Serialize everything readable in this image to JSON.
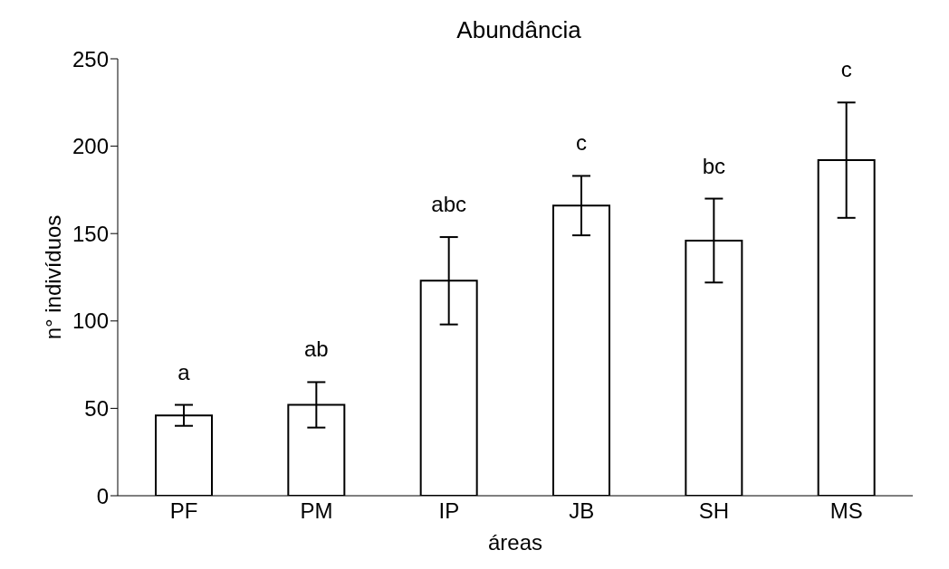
{
  "chart_data": {
    "type": "bar",
    "title": "Abundância",
    "xlabel": "áreas",
    "ylabel": "n° indivíduos",
    "categories": [
      "PF",
      "PM",
      "IP",
      "JB",
      "SH",
      "MS"
    ],
    "values": [
      46,
      52,
      123,
      166,
      146,
      192
    ],
    "errors": [
      6,
      13,
      25,
      17,
      24,
      33
    ],
    "color": "#ffffff",
    "ylim": [
      0,
      250
    ],
    "yticks": [
      0,
      50,
      100,
      150,
      200,
      250
    ],
    "grid": false,
    "legend": false,
    "annotations": [
      "a",
      "ab",
      "abc",
      "c",
      "bc",
      "c"
    ]
  }
}
